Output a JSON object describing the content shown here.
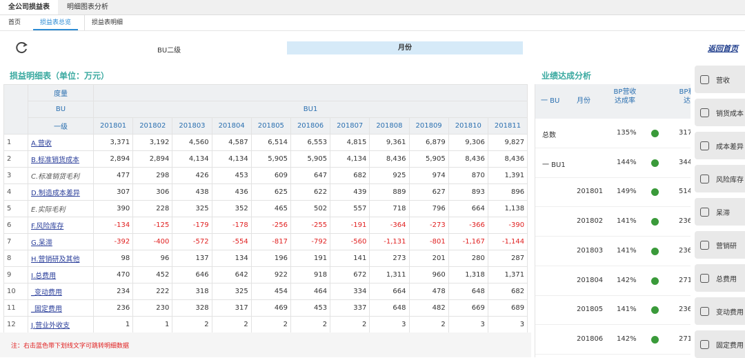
{
  "tabs": [
    "全公司损益表",
    "明细图表分析"
  ],
  "subtabs": [
    "首页",
    "损益表总览",
    "损益表明细"
  ],
  "toolbar": {
    "bu_label": "BU二级",
    "month_label": "月份",
    "back": "返回首页"
  },
  "left": {
    "title": "损益明细表（单位：万元）",
    "header": {
      "measure": "度量",
      "bu": "BU",
      "bu_value": "BU1",
      "level": "一级",
      "months": [
        "201801",
        "201802",
        "201803",
        "201804",
        "201805",
        "201806",
        "201807",
        "201808",
        "201809",
        "201810",
        "201811"
      ]
    },
    "rows": [
      [
        "1",
        "A.营收",
        "3,371",
        "3,192",
        "4,560",
        "4,587",
        "6,514",
        "6,553",
        "4,815",
        "9,361",
        "6,879",
        "9,306",
        "9,827"
      ],
      [
        "2",
        "B.标准销货成本",
        "2,894",
        "2,894",
        "4,134",
        "4,134",
        "5,905",
        "5,905",
        "4,134",
        "8,436",
        "5,905",
        "8,436",
        "8,436"
      ],
      [
        "3",
        "C.标准销货毛利",
        "477",
        "298",
        "426",
        "453",
        "609",
        "647",
        "682",
        "925",
        "974",
        "870",
        "1,391"
      ],
      [
        "4",
        "D.制造成本差异",
        "307",
        "306",
        "438",
        "436",
        "625",
        "622",
        "439",
        "889",
        "627",
        "893",
        "896"
      ],
      [
        "5",
        "E.实际毛利",
        "390",
        "228",
        "325",
        "352",
        "465",
        "502",
        "557",
        "718",
        "796",
        "664",
        "1,138"
      ],
      [
        "6",
        "F.风险库存",
        "-134",
        "-125",
        "-179",
        "-178",
        "-256",
        "-255",
        "-191",
        "-364",
        "-273",
        "-366",
        "-390"
      ],
      [
        "7",
        "G.呆滞",
        "-392",
        "-400",
        "-572",
        "-554",
        "-817",
        "-792",
        "-560",
        "-1,131",
        "-801",
        "-1,167",
        "-1,144"
      ],
      [
        "8",
        "H.营销研及其他",
        "98",
        "96",
        "137",
        "134",
        "196",
        "191",
        "141",
        "273",
        "201",
        "280",
        "287"
      ],
      [
        "9",
        "I.总费用",
        "470",
        "452",
        "646",
        "642",
        "922",
        "918",
        "672",
        "1,311",
        "960",
        "1,318",
        "1,371"
      ],
      [
        "10",
        "_变动费用",
        "234",
        "222",
        "318",
        "325",
        "454",
        "464",
        "334",
        "664",
        "478",
        "648",
        "682"
      ],
      [
        "11",
        "_固定费用",
        "236",
        "230",
        "328",
        "317",
        "469",
        "453",
        "337",
        "648",
        "482",
        "669",
        "689"
      ],
      [
        "12",
        "J.营业外收支",
        "1",
        "1",
        "2",
        "2",
        "2",
        "2",
        "2",
        "3",
        "2",
        "3",
        "3"
      ]
    ],
    "note": "注：右击蓝色带下划线文字可跳转明细数据"
  },
  "right": {
    "title": "业绩达成分析",
    "header": [
      "一 BU",
      "月份",
      "BP营收达成率",
      "BP利润达成"
    ],
    "rows": [
      [
        "总数",
        "",
        "135%",
        "317"
      ],
      [
        "一 BU1",
        "",
        "144%",
        "344"
      ],
      [
        "",
        "201801",
        "149%",
        "514"
      ],
      [
        "",
        "201802",
        "141%",
        "236"
      ],
      [
        "",
        "201803",
        "141%",
        "236"
      ],
      [
        "",
        "201804",
        "142%",
        "271"
      ],
      [
        "",
        "201805",
        "141%",
        "236"
      ],
      [
        "",
        "201806",
        "142%",
        "271"
      ]
    ]
  },
  "menu": [
    "营收",
    "销货成本",
    "成本差异",
    "风险库存",
    "呆滞",
    "营销研",
    "总费用",
    "变动费用",
    "固定费用"
  ]
}
